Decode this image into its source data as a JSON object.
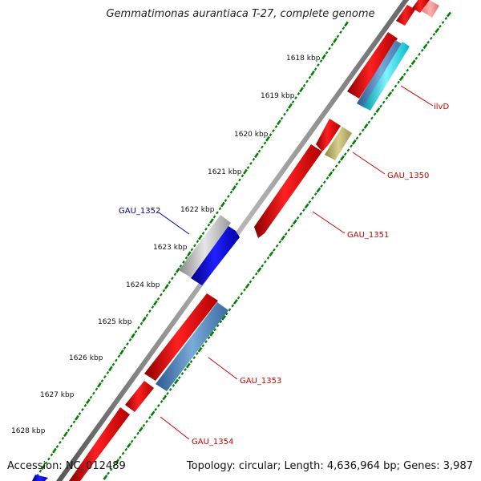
{
  "title": "Gemmatimonas aurantiaca T-27, complete genome",
  "accession": "Accession: NC_012489",
  "summary": "Topology: circular; Length: 4,636,964 bp; Genes: 3,987",
  "axis": {
    "ticks": [
      "1618 kbp",
      "1619 kbp",
      "1620 kbp",
      "1621 kbp",
      "1622 kbp",
      "1623 kbp",
      "1624 kbp",
      "1625 kbp",
      "1626 kbp",
      "1627 kbp",
      "1628 kbp"
    ]
  },
  "genes": [
    {
      "label": "ilvD",
      "strand": "plus",
      "color": "#ff0000"
    },
    {
      "label": "GAU_1350",
      "strand": "minus",
      "color": "#b8b06e"
    },
    {
      "label": "GAU_1351",
      "strand": "plus",
      "color": "#ff0000"
    },
    {
      "label": "GAU_1352",
      "strand": "minus",
      "color": "#0000ff"
    },
    {
      "label": "GAU_1353",
      "strand": "minus",
      "color": "#4a86c0"
    },
    {
      "label": "GAU_1354",
      "strand": "plus",
      "color": "#ff0000"
    }
  ],
  "colors": {
    "backbone": "#777777",
    "tick": "#008000",
    "cds": "#ff0000",
    "cds_label": "#cc0000",
    "blue_label": "#000099"
  }
}
